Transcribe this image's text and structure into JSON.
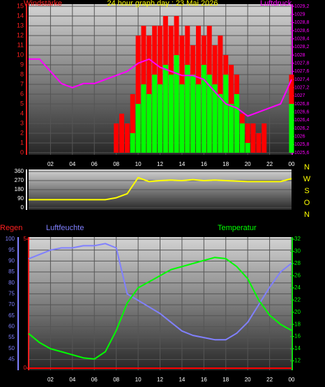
{
  "chart_data": [
    {
      "type": "bar",
      "title": "24 hour graph day : 23 Mai 2026",
      "ylabel": "Windstärke",
      "y2label": "Luftdruck",
      "xlim": [
        0,
        24
      ],
      "xticks": [
        {
          "value": 2,
          "label": "02"
        },
        {
          "value": 4,
          "label": "04"
        },
        {
          "value": 6,
          "label": "06"
        },
        {
          "value": 8,
          "label": "08"
        },
        10,
        12,
        14,
        16,
        18,
        20,
        22,
        {
          "value": 24,
          "label": "00"
        }
      ],
      "ylim": [
        0,
        15
      ],
      "yticks": [
        0,
        1,
        2,
        3,
        4,
        5,
        6,
        7,
        8,
        9,
        10,
        11,
        12,
        13,
        14,
        15
      ],
      "y2lim": [
        1025.6,
        1029.2
      ],
      "y2ticks": [
        {
          "value": 1025.6,
          "label": "1025,6"
        },
        {
          "value": 1025.8,
          "label": "1025,8"
        },
        1026,
        {
          "value": 1026.2,
          "label": "1026,2"
        },
        {
          "value": 1026.4,
          "label": "1026,4"
        },
        {
          "value": 1026.6,
          "label": "1026,6"
        },
        {
          "value": 1026.8,
          "label": "1026,8"
        },
        1027,
        {
          "value": 1027.2,
          "label": "1027,2"
        },
        {
          "value": 1027.4,
          "label": "1027,4"
        },
        {
          "value": 1027.6,
          "label": "1027,6"
        },
        {
          "value": 1027.8,
          "label": "1027,8"
        },
        1028,
        {
          "value": 1028.2,
          "label": "1028,2"
        },
        {
          "value": 1028.4,
          "label": "1028,4"
        },
        {
          "value": 1028.6,
          "label": "1028,6"
        },
        {
          "value": 1028.8,
          "label": "1028,8"
        },
        1029,
        {
          "value": 1029.2,
          "label": "1029,2"
        }
      ],
      "grid": true,
      "series": [
        {
          "type": "bar",
          "color": "#ff0000",
          "x": [
            0,
            0.5,
            1,
            1.5,
            2,
            2.5,
            3,
            3.5,
            4,
            4.5,
            5,
            5.5,
            6,
            6.5,
            7,
            7.5,
            8,
            8.5,
            9,
            9.5,
            10,
            10.5,
            11,
            11.5,
            12,
            12.5,
            13,
            13.5,
            14,
            14.5,
            15,
            15.5,
            16,
            16.5,
            17,
            17.5,
            18,
            18.5,
            19,
            19.5,
            20,
            20.5,
            21,
            21.5,
            22,
            22.5,
            23,
            23.5,
            24
          ],
          "values": [
            0,
            0,
            0,
            0,
            0,
            0,
            0,
            0,
            0,
            0,
            0,
            0,
            0,
            0,
            0,
            0,
            3,
            4,
            3,
            6,
            12,
            13,
            12,
            13,
            13,
            14,
            13,
            14,
            12,
            13,
            11,
            13,
            12,
            13,
            11,
            12,
            10,
            9,
            8,
            4,
            3,
            3,
            2,
            3,
            0,
            0,
            0,
            0,
            8
          ]
        },
        {
          "type": "bar",
          "color": "#00ff00",
          "x": [
            0,
            0.5,
            1,
            1.5,
            2,
            2.5,
            3,
            3.5,
            4,
            4.5,
            5,
            5.5,
            6,
            6.5,
            7,
            7.5,
            8,
            8.5,
            9,
            9.5,
            10,
            10.5,
            11,
            11.5,
            12,
            12.5,
            13,
            13.5,
            14,
            14.5,
            15,
            15.5,
            16,
            16.5,
            17,
            17.5,
            18,
            18.5,
            19,
            19.5,
            20,
            20.5,
            21,
            21.5,
            22,
            22.5,
            23,
            23.5,
            24
          ],
          "values": [
            0,
            0,
            0,
            0,
            0,
            0,
            0,
            0,
            0,
            0,
            0,
            0,
            0,
            0,
            0,
            0,
            0,
            0,
            0,
            2,
            5,
            7,
            6,
            8,
            7,
            9,
            8,
            10,
            7,
            9,
            8,
            7,
            9,
            8,
            7,
            6,
            8,
            5,
            6,
            3,
            1,
            0,
            0,
            0,
            0,
            0,
            0,
            0,
            5
          ]
        },
        {
          "type": "line",
          "axis": "y2",
          "color": "#ff00ff",
          "x": [
            0,
            1,
            2,
            3,
            4,
            5,
            6,
            7,
            8,
            9,
            10,
            11,
            12,
            13,
            14,
            15,
            16,
            17,
            18,
            19,
            20,
            21,
            22,
            23,
            24
          ],
          "values": [
            1027.9,
            1027.9,
            1027.6,
            1027.3,
            1027.2,
            1027.3,
            1027.3,
            1027.4,
            1027.5,
            1027.6,
            1027.8,
            1027.9,
            1027.7,
            1027.6,
            1027.5,
            1027.5,
            1027.4,
            1027.1,
            1026.8,
            1026.7,
            1026.5,
            1026.6,
            1026.7,
            1026.8,
            1027.4
          ]
        }
      ]
    },
    {
      "type": "line",
      "compass_labels": [
        "N",
        "W",
        "S",
        "O",
        "N"
      ],
      "xlim": [
        0,
        24
      ],
      "ylim": [
        0,
        360
      ],
      "yticks": [
        0,
        90,
        180,
        270,
        360
      ],
      "grid": true,
      "series": [
        {
          "type": "line",
          "color": "#ffff00",
          "x": [
            0,
            1,
            2,
            3,
            4,
            5,
            6,
            7,
            8,
            9,
            10,
            11,
            12,
            13,
            14,
            15,
            16,
            17,
            18,
            19,
            20,
            21,
            22,
            23,
            24
          ],
          "values": [
            80,
            80,
            80,
            80,
            80,
            80,
            80,
            80,
            100,
            140,
            300,
            260,
            270,
            275,
            270,
            280,
            270,
            275,
            270,
            265,
            260,
            260,
            260,
            260,
            290
          ]
        }
      ]
    },
    {
      "type": "line",
      "y3label": "Regen",
      "ylabel": "Luftfeuchte",
      "y2label": "Temperatur",
      "xlim": [
        0,
        24
      ],
      "xticks": [
        {
          "value": 2,
          "label": "02"
        },
        {
          "value": 4,
          "label": "04"
        },
        {
          "value": 6,
          "label": "06"
        },
        {
          "value": 8,
          "label": "08"
        },
        10,
        12,
        14,
        16,
        18,
        20,
        22,
        {
          "value": 24,
          "label": "00"
        }
      ],
      "ylim": [
        41,
        100
      ],
      "yticks": [
        45,
        50,
        55,
        60,
        65,
        70,
        75,
        80,
        85,
        90,
        95,
        100
      ],
      "y2lim": [
        10.8,
        32
      ],
      "y2ticks": [
        12,
        14,
        16,
        18,
        20,
        22,
        24,
        26,
        28,
        30,
        32
      ],
      "y3lim": [
        0,
        5
      ],
      "y3ticks": [
        0,
        5
      ],
      "grid": true,
      "series": [
        {
          "type": "line",
          "axis": "y3",
          "color": "#ff0000",
          "x": [
            0,
            1,
            2,
            3,
            4,
            5,
            6,
            7,
            8,
            9,
            10,
            11,
            12,
            13,
            14,
            15,
            16,
            17,
            18,
            19,
            20,
            21,
            22,
            23,
            24
          ],
          "values": [
            0,
            0,
            0,
            0,
            0,
            0,
            0,
            0,
            0,
            0,
            0,
            0,
            0,
            0,
            0,
            0,
            0,
            0,
            0,
            0,
            0,
            0,
            0,
            0,
            0
          ]
        },
        {
          "type": "line",
          "color": "#8080ff",
          "x": [
            0,
            1,
            2,
            3,
            4,
            5,
            6,
            7,
            8,
            9,
            10,
            11,
            12,
            13,
            14,
            15,
            16,
            17,
            18,
            19,
            20,
            21,
            22,
            23,
            24
          ],
          "values": [
            91,
            93,
            95,
            96,
            96,
            97,
            97,
            98,
            96,
            75,
            72,
            69,
            66,
            62,
            58,
            56,
            55,
            54,
            54,
            57,
            62,
            70,
            78,
            85,
            89
          ]
        },
        {
          "type": "line",
          "axis": "y2",
          "color": "#00ff00",
          "x": [
            0,
            1,
            2,
            3,
            4,
            5,
            6,
            7,
            8,
            9,
            10,
            11,
            12,
            13,
            14,
            15,
            16,
            17,
            18,
            19,
            20,
            21,
            22,
            23,
            24
          ],
          "values": [
            16.5,
            15,
            14,
            13.5,
            13,
            12.5,
            12.3,
            13.5,
            17,
            21.5,
            24,
            25,
            26,
            27,
            27.5,
            28,
            28.5,
            29,
            28.8,
            27.5,
            25.5,
            22,
            19.5,
            18,
            17
          ]
        }
      ]
    }
  ]
}
